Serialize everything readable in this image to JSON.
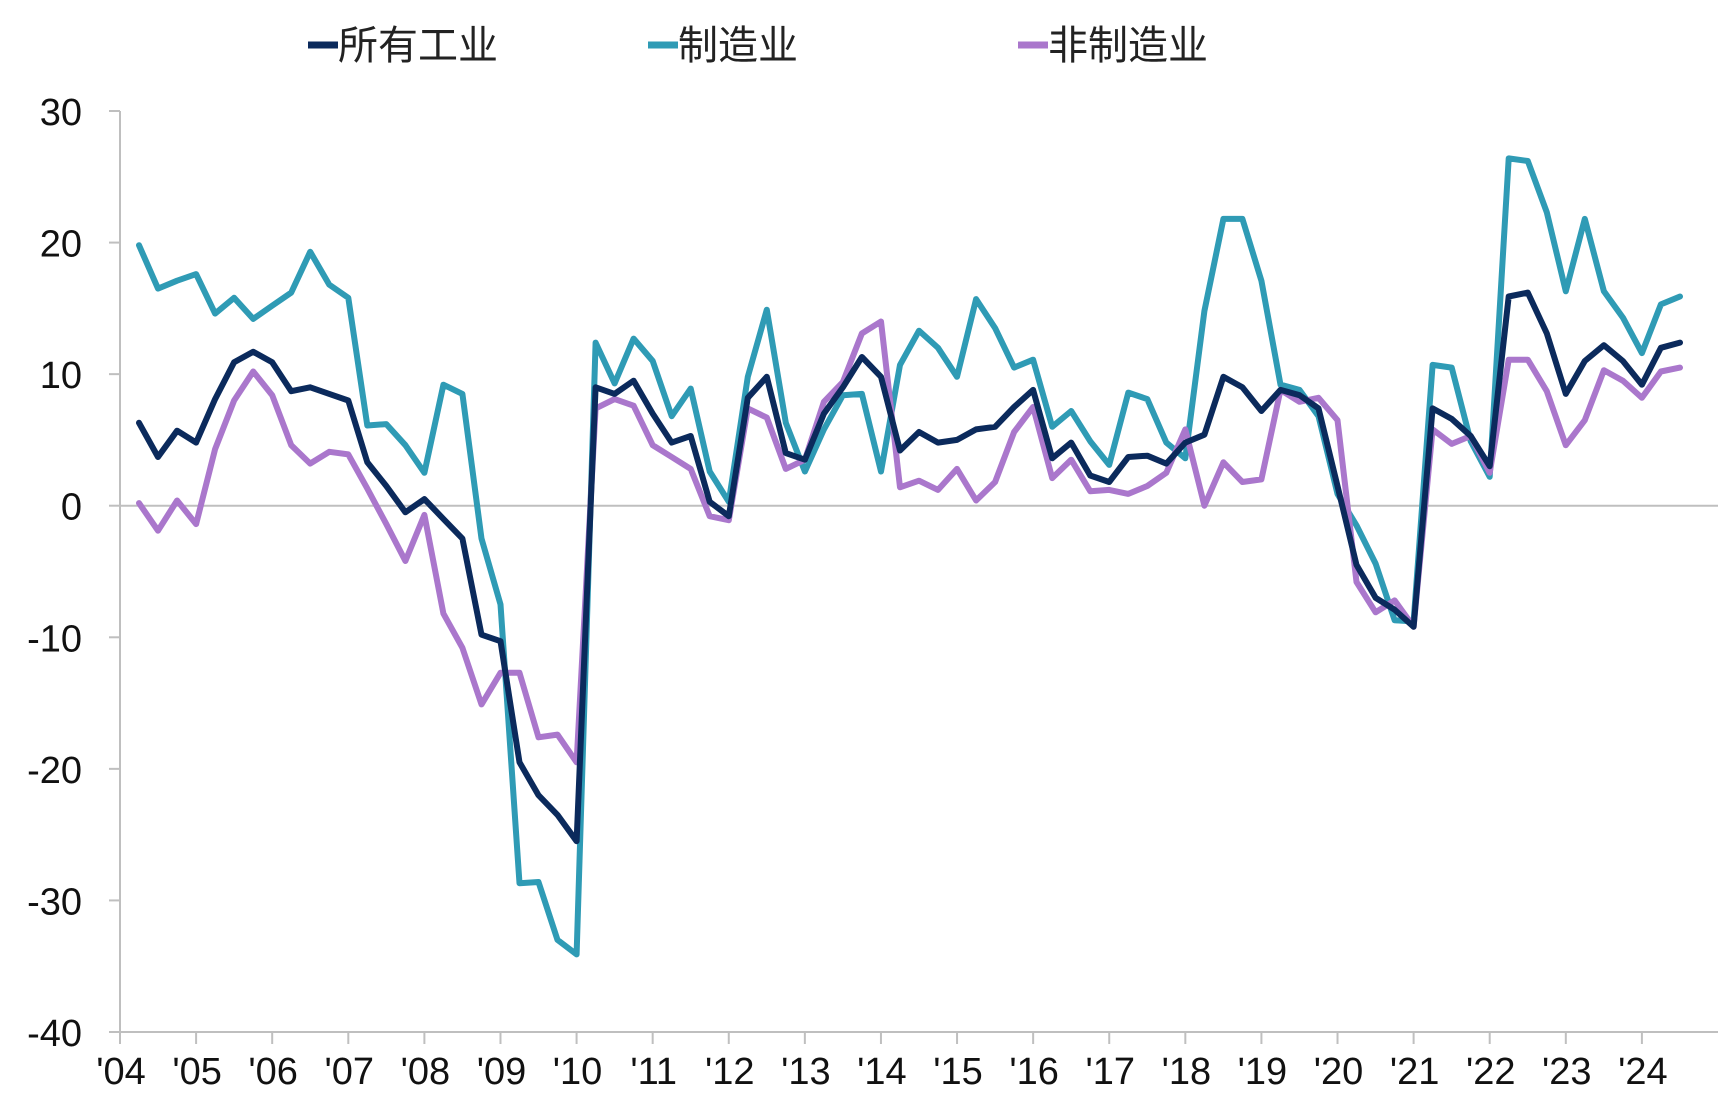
{
  "chart_data": {
    "type": "line",
    "legend": {
      "position": "top",
      "entries": [
        "所有工业",
        "制造业",
        "非制造业"
      ]
    },
    "y_axis": {
      "ylim": [
        -40,
        30
      ],
      "ticks": [
        30,
        20,
        10,
        0,
        -10,
        -20,
        -30,
        -40
      ],
      "tick_labels": [
        "30",
        "20",
        "10",
        "0",
        "-10",
        "-20",
        "-30",
        "-40"
      ]
    },
    "x_axis": {
      "xlim": [
        2004.0,
        2025.0
      ],
      "tick_positions": [
        2004,
        2005,
        2006,
        2007,
        2008,
        2009,
        2010,
        2011,
        2012,
        2013,
        2014,
        2015,
        2016,
        2017,
        2018,
        2019,
        2020,
        2021,
        2022,
        2023,
        2024
      ],
      "tick_labels": [
        "'04",
        "'05",
        "'06",
        "'07",
        "'08",
        "'09",
        "'10",
        "'11",
        "'12",
        "'13",
        "'14",
        "'15",
        "'16",
        "'17",
        "'18",
        "'19",
        "'20",
        "'21",
        "'22",
        "'23",
        "'24"
      ]
    },
    "grid": false,
    "zero_line": true,
    "x": [
      2004.25,
      2004.5,
      2004.75,
      2005.0,
      2005.25,
      2005.5,
      2005.75,
      2006.0,
      2006.25,
      2006.5,
      2006.75,
      2007.0,
      2007.25,
      2007.5,
      2007.75,
      2008.0,
      2008.25,
      2008.5,
      2008.75,
      2009.0,
      2009.25,
      2009.5,
      2009.75,
      2010.0,
      2010.25,
      2010.5,
      2010.75,
      2011.0,
      2011.25,
      2011.5,
      2011.75,
      2012.0,
      2012.25,
      2012.5,
      2012.75,
      2013.0,
      2013.25,
      2013.5,
      2013.75,
      2014.0,
      2014.25,
      2014.5,
      2014.75,
      2015.0,
      2015.25,
      2015.5,
      2015.75,
      2016.0,
      2016.25,
      2016.5,
      2016.75,
      2017.0,
      2017.25,
      2017.5,
      2017.75,
      2018.0,
      2018.25,
      2018.5,
      2018.75,
      2019.0,
      2019.25,
      2019.5,
      2019.75,
      2020.0,
      2020.25,
      2020.5,
      2020.75,
      2021.0,
      2021.25,
      2021.5,
      2021.75,
      2022.0,
      2022.25,
      2022.5,
      2022.75,
      2023.0,
      2023.25,
      2023.5,
      2023.75,
      2024.0,
      2024.25,
      2024.5
    ],
    "series": [
      {
        "name": "所有工业",
        "color": "#0b2a5c",
        "values": [
          6.3,
          3.7,
          5.7,
          4.8,
          8.1,
          10.9,
          11.7,
          10.9,
          8.7,
          9.0,
          8.5,
          8.0,
          3.3,
          1.5,
          -0.5,
          0.5,
          -1.0,
          -2.5,
          -9.8,
          -10.3,
          -19.5,
          -22.0,
          -23.5,
          -25.5,
          9.0,
          8.5,
          9.5,
          7.0,
          4.8,
          5.3,
          0.3,
          -0.8,
          8.2,
          9.8,
          4.0,
          3.5,
          7.0,
          9.0,
          11.3,
          9.8,
          4.2,
          5.6,
          4.8,
          5.0,
          5.8,
          6.0,
          7.5,
          8.8,
          3.6,
          4.8,
          2.3,
          1.8,
          3.7,
          3.8,
          3.2,
          4.8,
          5.4,
          9.8,
          9.0,
          7.2,
          8.8,
          8.4,
          7.4,
          1.5,
          -4.5,
          -7.0,
          -7.9,
          -9.2,
          7.4,
          6.6,
          5.3,
          3.0,
          15.9,
          16.2,
          13.1,
          8.5,
          11.0,
          12.2,
          11.0,
          9.2,
          12.0,
          12.4
        ]
      },
      {
        "name": "制造业",
        "color": "#2f9bb5",
        "values": [
          19.8,
          16.5,
          17.1,
          17.6,
          14.6,
          15.8,
          14.2,
          15.2,
          16.2,
          19.3,
          16.8,
          15.8,
          6.1,
          6.2,
          4.6,
          2.5,
          9.2,
          8.5,
          -2.5,
          -7.5,
          -28.7,
          -28.6,
          -33.0,
          -34.1,
          12.4,
          9.3,
          12.7,
          11.0,
          6.8,
          8.9,
          2.6,
          0.3,
          9.8,
          14.9,
          6.3,
          2.6,
          5.8,
          8.4,
          8.5,
          2.6,
          10.7,
          13.3,
          12.0,
          9.8,
          15.7,
          13.5,
          10.5,
          11.1,
          6.0,
          7.2,
          4.9,
          3.1,
          8.6,
          8.1,
          4.8,
          3.6,
          14.8,
          21.8,
          21.8,
          17.1,
          9.2,
          8.8,
          6.8,
          0.9,
          -1.5,
          -4.4,
          -8.7,
          -8.8,
          10.7,
          10.5,
          4.9,
          2.2,
          26.4,
          26.2,
          22.3,
          16.3,
          21.8,
          16.3,
          14.3,
          11.6,
          15.3,
          15.9
        ]
      },
      {
        "name": "非制造业",
        "color": "#aa77cc",
        "values": [
          0.2,
          -1.9,
          0.4,
          -1.4,
          4.3,
          8.0,
          10.2,
          8.4,
          4.6,
          3.2,
          4.1,
          3.9,
          1.3,
          -1.4,
          -4.2,
          -0.7,
          -8.2,
          -10.8,
          -15.1,
          -12.7,
          -12.7,
          -17.6,
          -17.4,
          -19.5,
          7.4,
          8.1,
          7.6,
          4.6,
          3.7,
          2.8,
          -0.8,
          -1.1,
          7.4,
          6.7,
          2.8,
          3.5,
          7.9,
          9.4,
          13.1,
          14.0,
          1.4,
          1.9,
          1.2,
          2.8,
          0.4,
          1.8,
          5.6,
          7.5,
          2.1,
          3.5,
          1.1,
          1.2,
          0.9,
          1.5,
          2.5,
          5.8,
          0.0,
          3.3,
          1.8,
          2.0,
          8.8,
          7.9,
          8.2,
          6.5,
          -5.8,
          -8.1,
          -7.2,
          -9.2,
          5.8,
          4.7,
          5.3,
          2.5,
          11.1,
          11.1,
          8.7,
          4.6,
          6.5,
          10.3,
          9.5,
          8.2,
          10.2,
          10.5
        ]
      }
    ]
  }
}
